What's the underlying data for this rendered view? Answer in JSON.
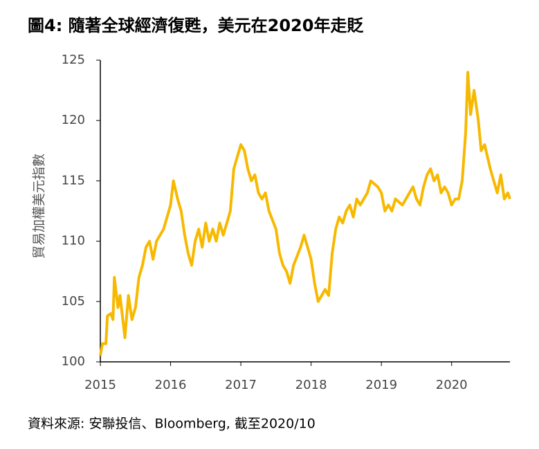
{
  "chart_data": {
    "type": "line",
    "title": "圖4: 隨著全球經濟復甦，美元在2020年走貶",
    "y_label": "貿易加權美元指數",
    "source": "資料來源: 安聯投信、Bloomberg, 截至2020/10",
    "xlim": [
      2015,
      2020.83
    ],
    "xticks": [
      2015,
      2016,
      2017,
      2018,
      2019,
      2020
    ],
    "ylim": [
      100,
      125
    ],
    "yticks": [
      100,
      105,
      110,
      115,
      120,
      125
    ],
    "grid": false,
    "series": [
      {
        "name": "貿易加權美元指數",
        "color": "#f7b900",
        "x": [
          2015.0,
          2015.03,
          2015.08,
          2015.1,
          2015.15,
          2015.18,
          2015.2,
          2015.25,
          2015.28,
          2015.32,
          2015.35,
          2015.4,
          2015.45,
          2015.5,
          2015.55,
          2015.6,
          2015.65,
          2015.7,
          2015.75,
          2015.8,
          2015.85,
          2015.9,
          2015.95,
          2016.0,
          2016.04,
          2016.1,
          2016.15,
          2016.2,
          2016.25,
          2016.3,
          2016.35,
          2016.4,
          2016.45,
          2016.5,
          2016.55,
          2016.6,
          2016.65,
          2016.7,
          2016.75,
          2016.85,
          2016.9,
          2016.95,
          2017.0,
          2017.05,
          2017.1,
          2017.15,
          2017.2,
          2017.25,
          2017.3,
          2017.35,
          2017.4,
          2017.5,
          2017.55,
          2017.6,
          2017.65,
          2017.7,
          2017.75,
          2017.85,
          2017.9,
          2017.95,
          2018.0,
          2018.05,
          2018.1,
          2018.15,
          2018.2,
          2018.25,
          2018.3,
          2018.35,
          2018.4,
          2018.45,
          2018.5,
          2018.55,
          2018.6,
          2018.65,
          2018.7,
          2018.8,
          2018.85,
          2018.95,
          2019.0,
          2019.05,
          2019.1,
          2019.15,
          2019.2,
          2019.3,
          2019.4,
          2019.45,
          2019.5,
          2019.55,
          2019.6,
          2019.65,
          2019.7,
          2019.75,
          2019.8,
          2019.85,
          2019.9,
          2019.95,
          2020.0,
          2020.05,
          2020.1,
          2020.15,
          2020.2,
          2020.23,
          2020.27,
          2020.32,
          2020.38,
          2020.42,
          2020.47,
          2020.55,
          2020.6,
          2020.65,
          2020.7,
          2020.75,
          2020.8,
          2020.83
        ],
        "values": [
          100.5,
          101.5,
          101.5,
          103.8,
          104,
          103.5,
          107,
          104.5,
          105.5,
          103.5,
          102,
          105.5,
          103.5,
          104.5,
          107,
          108,
          109.5,
          110,
          108.5,
          110,
          110.5,
          111,
          112,
          113,
          115,
          113.5,
          112.5,
          110.5,
          109,
          108,
          110,
          111,
          109.5,
          111.5,
          110,
          111,
          110,
          111.5,
          110.5,
          112.5,
          116,
          117,
          118,
          117.5,
          116,
          115,
          115.5,
          114,
          113.5,
          114,
          112.5,
          111,
          109,
          108,
          107.5,
          106.5,
          108,
          109.5,
          110.5,
          109.5,
          108.5,
          106.5,
          105,
          105.5,
          106,
          105.5,
          109,
          111,
          112,
          111.5,
          112.5,
          113,
          112,
          113.5,
          113,
          114,
          115,
          114.5,
          114,
          112.5,
          113,
          112.5,
          113.5,
          113,
          114,
          114.5,
          113.5,
          113,
          114.5,
          115.5,
          116,
          115,
          115.5,
          114,
          114.5,
          114,
          113,
          113.5,
          113.5,
          115,
          119,
          124,
          120.5,
          122.5,
          120,
          117.5,
          118,
          116,
          115,
          114,
          115.5,
          113.5,
          114,
          113.5
        ]
      }
    ]
  }
}
